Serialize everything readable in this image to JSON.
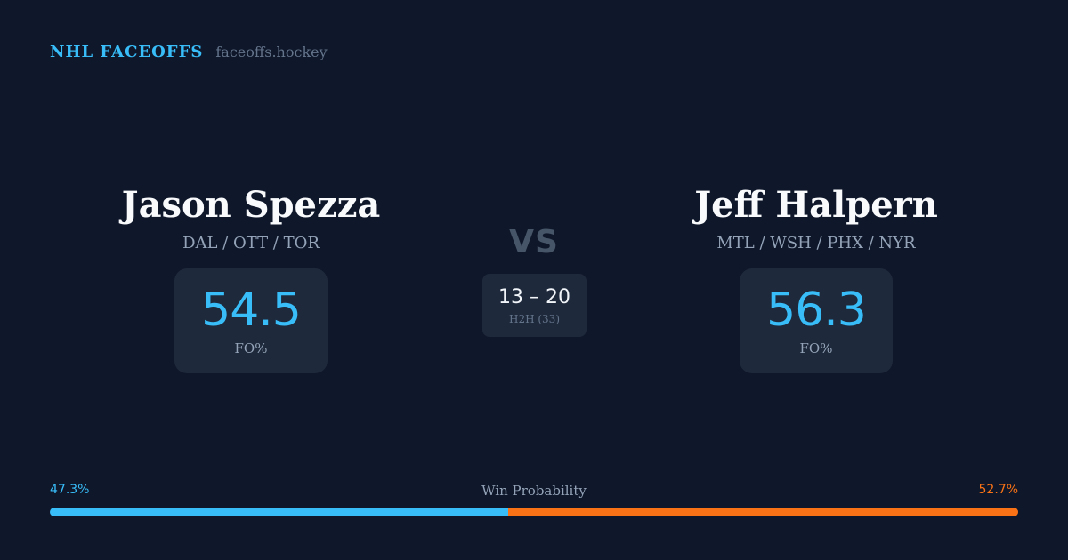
{
  "brand": {
    "name": "NHL FACEOFFS",
    "site": "faceoffs.hockey"
  },
  "player_left": {
    "name": "Jason Spezza",
    "teams": "DAL / OTT / TOR",
    "fo_value": "54.5",
    "fo_label": "FO%"
  },
  "player_right": {
    "name": "Jeff Halpern",
    "teams": "MTL / WSH / PHX / NYR",
    "fo_value": "56.3",
    "fo_label": "FO%"
  },
  "versus": {
    "label": "VS",
    "h2h_score": "13 – 20",
    "h2h_label": "H2H (33)"
  },
  "win_probability": {
    "title": "Win Probability",
    "left_label": "47.3%",
    "right_label": "52.7%",
    "left_value": 47.3,
    "right_value": 52.7,
    "left_color": "#38bdf8",
    "right_color": "#f97316"
  }
}
